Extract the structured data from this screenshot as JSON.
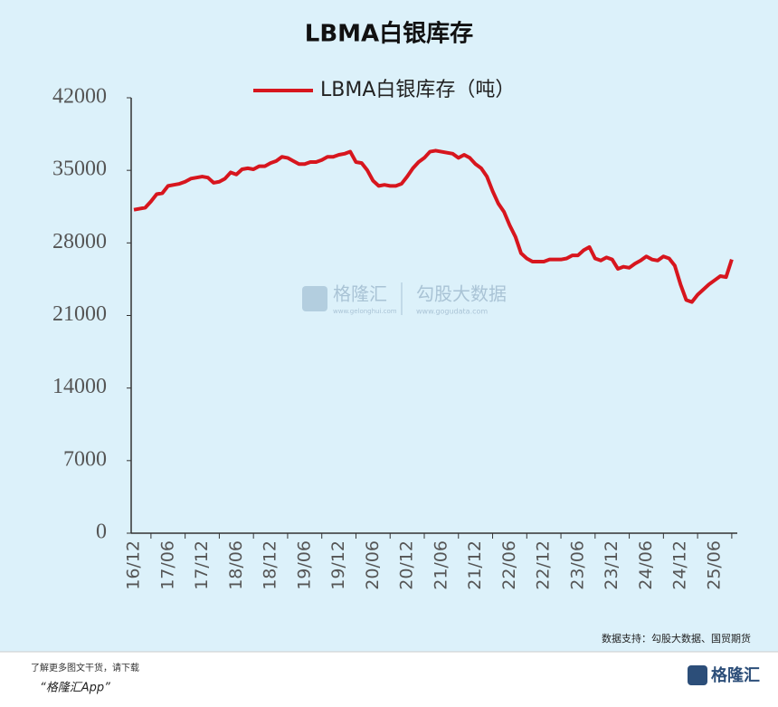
{
  "chart_data": {
    "type": "line",
    "title": "LBMA白银库存",
    "categories": [
      "16/12",
      null,
      null,
      null,
      null,
      null,
      "17/06",
      null,
      null,
      null,
      null,
      null,
      "17/12",
      null,
      null,
      null,
      null,
      null,
      "18/06",
      null,
      null,
      null,
      null,
      null,
      "18/12",
      null,
      null,
      null,
      null,
      null,
      "19/06",
      null,
      null,
      null,
      null,
      null,
      "19/12",
      null,
      null,
      null,
      null,
      null,
      "20/06",
      null,
      null,
      null,
      null,
      null,
      "20/12",
      null,
      null,
      null,
      null,
      null,
      "21/06",
      null,
      null,
      null,
      null,
      null,
      "21/12",
      null,
      null,
      null,
      null,
      null,
      "22/06",
      null,
      null,
      null,
      null,
      null,
      "22/12",
      null,
      null,
      null,
      null,
      null,
      "23/06",
      null,
      null,
      null,
      null,
      null,
      "23/12",
      null,
      null,
      null,
      null,
      null,
      "24/06",
      null,
      null,
      null,
      null,
      null,
      "24/12",
      null,
      null,
      null,
      null,
      null,
      "25/06",
      null,
      null,
      null
    ],
    "series": [
      {
        "name": "LBMA白银库存（吨）",
        "color": "#d7161e",
        "values": [
          31200,
          31300,
          31400,
          32000,
          32700,
          32800,
          33500,
          33600,
          33700,
          33900,
          34200,
          34300,
          34400,
          34300,
          33800,
          33900,
          34200,
          34800,
          34600,
          35100,
          35200,
          35100,
          35400,
          35400,
          35700,
          35900,
          36300,
          36200,
          35900,
          35600,
          35600,
          35800,
          35800,
          36000,
          36300,
          36300,
          36500,
          36600,
          36800,
          35800,
          35700,
          35000,
          34000,
          33500,
          33600,
          33500,
          33500,
          33700,
          34400,
          35200,
          35800,
          36200,
          36800,
          36900,
          36800,
          36700,
          36600,
          36200,
          36500,
          36200,
          35600,
          35200,
          34400,
          33000,
          31800,
          31000,
          29700,
          28600,
          27000,
          26500,
          26200,
          26200,
          26200,
          26400,
          26400,
          26400,
          26500,
          26800,
          26800,
          27300,
          27600,
          26500,
          26300,
          26600,
          26400,
          25500,
          25700,
          25600,
          26000,
          26300,
          26700,
          26400,
          26300,
          26700,
          26500,
          25800,
          24000,
          22500,
          22300,
          23000,
          23500,
          24000,
          24400,
          24800,
          24700,
          26400
        ]
      }
    ],
    "ylim": [
      0,
      42000
    ],
    "yticks": [
      0,
      7000,
      14000,
      21000,
      28000,
      35000,
      42000
    ],
    "grid": false,
    "source": "数据支持：勾股大数据、国贸期货"
  },
  "watermark": {
    "brand": "格隆汇",
    "brand_url": "www.gelonghui.com",
    "partner": "勾股大数据",
    "partner_url": "www.gogudata.com"
  },
  "footer": {
    "note": "了解更多图文干货，请下载",
    "app": "“格隆汇App”",
    "logo": "格隆汇"
  }
}
